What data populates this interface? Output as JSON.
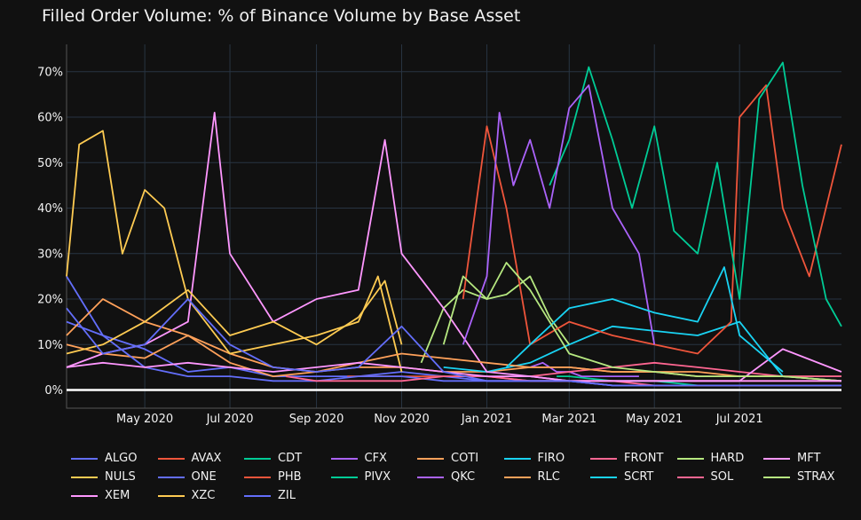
{
  "chart_data": {
    "type": "line",
    "title": "Filled Order Volume: % of Binance Volume by Base Asset",
    "xlabel": "",
    "ylabel": "",
    "x_range": [
      "2020-03-06",
      "2021-09-12"
    ],
    "ylim": [
      -4,
      76
    ],
    "y_ticks": [
      0,
      10,
      20,
      30,
      40,
      50,
      60,
      70
    ],
    "y_tick_labels": [
      "0%",
      "10%",
      "20%",
      "30%",
      "40%",
      "50%",
      "60%",
      "70%"
    ],
    "x_ticks": [
      "2020-05-01",
      "2020-07-01",
      "2020-09-01",
      "2020-11-01",
      "2021-01-01",
      "2021-03-01",
      "2021-05-01",
      "2021-07-01"
    ],
    "x_tick_labels": [
      "May 2020",
      "Jul 2020",
      "Sep 2020",
      "Nov 2020",
      "Jan 2021",
      "Mar 2021",
      "May 2021",
      "Jul 2021"
    ],
    "grid": true,
    "zero_line": true,
    "legend_position": "bottom",
    "background": "#111111",
    "series": [
      {
        "name": "ALGO",
        "color": "#636efa",
        "x": [
          "2020-03-06",
          "2020-04-01",
          "2020-05-01",
          "2020-06-01",
          "2020-07-01",
          "2020-08-01",
          "2020-09-01",
          "2020-10-01",
          "2020-11-01",
          "2020-12-01",
          "2021-01-01",
          "2021-02-01",
          "2021-03-01",
          "2021-04-01",
          "2021-05-01",
          "2021-06-01",
          "2021-07-01",
          "2021-08-01",
          "2021-09-12"
        ],
        "values": [
          25,
          12,
          9,
          4,
          5,
          3,
          3,
          3,
          4,
          3,
          2,
          2,
          2,
          1,
          1,
          1,
          1,
          1,
          1
        ]
      },
      {
        "name": "AVAX",
        "color": "#ef553b",
        "x": [
          "2020-09-23",
          "2020-10-15",
          "2020-11-15",
          "2020-12-15",
          "2021-01-01",
          "2021-02-01",
          "2021-03-01",
          "2021-04-01",
          "2021-05-01",
          "2021-06-01",
          "2021-07-01",
          "2021-08-01",
          "2021-09-12"
        ],
        "values": [
          3,
          3,
          3,
          3,
          3,
          2,
          2,
          2,
          2,
          2,
          2,
          2,
          2
        ]
      },
      {
        "name": "CDT",
        "color": "#00cc96",
        "x": [
          "2021-02-20",
          "2021-03-01",
          "2021-04-01",
          "2021-05-01",
          "2021-06-01",
          "2021-07-01",
          "2021-08-01",
          "2021-09-12"
        ],
        "values": [
          3,
          3,
          2,
          2,
          1,
          1,
          1,
          1
        ]
      },
      {
        "name": "CFX",
        "color": "#ab63fa",
        "x": [
          "2021-02-01",
          "2021-02-10",
          "2021-02-20",
          "2021-03-01",
          "2021-03-10",
          "2021-03-20",
          "2021-04-01",
          "2021-04-20"
        ],
        "values": [
          5,
          6,
          4,
          4,
          3,
          3,
          3,
          3
        ]
      },
      {
        "name": "COTI",
        "color": "#ffa15a",
        "x": [
          "2020-03-06",
          "2020-04-01",
          "2020-05-01",
          "2020-06-01",
          "2020-07-01",
          "2020-08-01",
          "2020-09-01",
          "2020-10-01",
          "2020-11-01",
          "2020-12-01",
          "2021-01-01",
          "2021-02-01",
          "2021-03-01",
          "2021-04-01",
          "2021-05-01",
          "2021-06-01",
          "2021-07-01",
          "2021-08-01",
          "2021-09-12"
        ],
        "values": [
          10,
          8,
          7,
          12,
          8,
          5,
          4,
          5,
          5,
          4,
          4,
          5,
          5,
          4,
          4,
          4,
          3,
          3,
          3
        ]
      },
      {
        "name": "FIRO",
        "color": "#19d3f3",
        "x": [
          "2020-12-01",
          "2021-01-01",
          "2021-02-01",
          "2021-03-01",
          "2021-04-01",
          "2021-05-01",
          "2021-06-01",
          "2021-07-01",
          "2021-08-01",
          "2021-09-12"
        ],
        "values": [
          5,
          4,
          6,
          10,
          14,
          13,
          12,
          15,
          3,
          2
        ]
      },
      {
        "name": "FRONT",
        "color": "#ff6692",
        "x": [
          "2021-02-01",
          "2021-03-01",
          "2021-04-01",
          "2021-05-01",
          "2021-06-01",
          "2021-07-01",
          "2021-08-01",
          "2021-09-12"
        ],
        "values": [
          3,
          4,
          5,
          6,
          5,
          4,
          3,
          3
        ]
      },
      {
        "name": "HARD",
        "color": "#b6e880",
        "x": [
          "2020-11-15",
          "2020-12-01",
          "2020-12-15",
          "2021-01-01",
          "2021-01-15",
          "2021-02-01",
          "2021-02-15",
          "2021-03-01"
        ],
        "values": [
          6,
          18,
          22,
          20,
          21,
          25,
          16,
          10
        ]
      },
      {
        "name": "MFT",
        "color": "#ff97ff",
        "x": [
          "2020-03-06",
          "2020-04-01",
          "2020-05-01",
          "2020-06-01",
          "2020-06-20",
          "2020-07-01",
          "2020-08-01",
          "2020-09-01",
          "2020-10-01",
          "2020-10-20",
          "2020-11-01",
          "2020-12-01",
          "2021-01-01",
          "2021-02-01",
          "2021-03-01",
          "2021-05-01",
          "2021-07-01",
          "2021-08-01",
          "2021-09-12"
        ],
        "values": [
          5,
          8,
          10,
          15,
          61,
          30,
          15,
          20,
          22,
          55,
          30,
          18,
          4,
          3,
          2,
          2,
          2,
          9,
          4
        ]
      },
      {
        "name": "NULS",
        "color": "#fecb52",
        "x": [
          "2020-03-06",
          "2020-03-15",
          "2020-04-01",
          "2020-04-15",
          "2020-05-01",
          "2020-05-15",
          "2020-06-01",
          "2020-07-01",
          "2020-08-01",
          "2020-09-01",
          "2020-10-01",
          "2020-10-15",
          "2020-11-01"
        ],
        "values": [
          25,
          54,
          57,
          30,
          44,
          40,
          20,
          8,
          10,
          12,
          15,
          25,
          4
        ]
      },
      {
        "name": "ONE",
        "color": "#636efa",
        "x": [
          "2020-03-06",
          "2020-04-01",
          "2020-05-01",
          "2020-06-01",
          "2020-07-01",
          "2020-08-01",
          "2020-09-01",
          "2020-10-01",
          "2020-11-01",
          "2020-12-01",
          "2021-01-01",
          "2021-02-01",
          "2021-03-01",
          "2021-04-01",
          "2021-05-01",
          "2021-06-01",
          "2021-07-01",
          "2021-08-01",
          "2021-09-12"
        ],
        "values": [
          15,
          12,
          5,
          3,
          3,
          2,
          2,
          3,
          3,
          2,
          2,
          2,
          2,
          1,
          1,
          1,
          1,
          1,
          1
        ]
      },
      {
        "name": "PHB",
        "color": "#ef553b",
        "x": [
          "2020-12-15",
          "2021-01-01",
          "2021-01-15",
          "2021-02-01",
          "2021-03-01",
          "2021-04-01",
          "2021-05-01",
          "2021-06-01",
          "2021-06-25",
          "2021-07-01",
          "2021-07-20",
          "2021-08-01",
          "2021-08-20",
          "2021-09-12"
        ],
        "values": [
          20,
          58,
          40,
          10,
          15,
          12,
          10,
          8,
          15,
          60,
          67,
          40,
          25,
          54
        ]
      },
      {
        "name": "PIVX",
        "color": "#00cc96",
        "x": [
          "2021-02-15",
          "2021-03-01",
          "2021-03-15",
          "2021-04-01",
          "2021-04-15",
          "2021-05-01",
          "2021-05-15",
          "2021-06-01",
          "2021-06-15",
          "2021-07-01",
          "2021-07-15",
          "2021-08-01",
          "2021-08-15",
          "2021-09-01",
          "2021-09-12"
        ],
        "values": [
          45,
          55,
          71,
          55,
          40,
          58,
          35,
          30,
          50,
          20,
          64,
          72,
          45,
          20,
          14
        ]
      },
      {
        "name": "QKC",
        "color": "#ab63fa",
        "x": [
          "2020-12-15",
          "2021-01-01",
          "2021-01-10",
          "2021-01-20",
          "2021-02-01",
          "2021-02-15",
          "2021-03-01",
          "2021-03-15",
          "2021-04-01",
          "2021-04-20",
          "2021-05-01"
        ],
        "values": [
          10,
          25,
          61,
          45,
          55,
          40,
          62,
          67,
          40,
          30,
          10
        ]
      },
      {
        "name": "RLC",
        "color": "#ffa15a",
        "x": [
          "2020-03-06",
          "2020-04-01",
          "2020-05-01",
          "2020-06-01",
          "2020-07-01",
          "2020-08-01",
          "2020-09-01",
          "2020-10-01",
          "2020-11-01",
          "2020-12-01",
          "2021-01-01",
          "2021-02-01",
          "2021-03-01",
          "2021-04-01",
          "2021-05-01",
          "2021-06-01",
          "2021-07-01",
          "2021-08-01",
          "2021-09-12"
        ],
        "values": [
          12,
          20,
          15,
          12,
          6,
          3,
          4,
          6,
          8,
          7,
          6,
          5,
          5,
          4,
          4,
          3,
          3,
          3,
          2
        ]
      },
      {
        "name": "SCRT",
        "color": "#19d3f3",
        "x": [
          "2021-01-15",
          "2021-02-01",
          "2021-03-01",
          "2021-04-01",
          "2021-05-01",
          "2021-06-01",
          "2021-06-20",
          "2021-07-01",
          "2021-08-01"
        ],
        "values": [
          5,
          10,
          18,
          20,
          17,
          15,
          27,
          12,
          4
        ]
      },
      {
        "name": "SOL",
        "color": "#ff6692",
        "x": [
          "2020-08-10",
          "2020-09-01",
          "2020-10-01",
          "2020-11-01",
          "2020-12-01",
          "2021-01-01",
          "2021-02-01",
          "2021-03-01",
          "2021-04-01",
          "2021-05-01",
          "2021-06-01",
          "2021-07-01",
          "2021-08-01",
          "2021-09-12"
        ],
        "values": [
          3,
          2,
          2,
          2,
          3,
          3,
          2,
          2,
          2,
          1,
          1,
          1,
          1,
          1
        ]
      },
      {
        "name": "STRAX",
        "color": "#b6e880",
        "x": [
          "2020-12-01",
          "2020-12-15",
          "2021-01-01",
          "2021-01-15",
          "2021-02-01",
          "2021-03-01",
          "2021-04-01",
          "2021-05-01",
          "2021-06-01",
          "2021-07-01",
          "2021-08-01",
          "2021-09-12"
        ],
        "values": [
          10,
          25,
          20,
          28,
          22,
          8,
          5,
          4,
          3,
          3,
          3,
          2
        ]
      },
      {
        "name": "XEM",
        "color": "#ff97ff",
        "x": [
          "2020-03-06",
          "2020-04-01",
          "2020-05-01",
          "2020-06-01",
          "2020-07-01",
          "2020-08-01",
          "2020-09-01",
          "2020-10-01",
          "2020-11-01",
          "2020-12-01",
          "2021-01-01",
          "2021-02-01",
          "2021-03-01",
          "2021-04-01",
          "2021-05-01",
          "2021-06-01",
          "2021-07-01",
          "2021-08-01",
          "2021-09-12"
        ],
        "values": [
          5,
          6,
          5,
          6,
          5,
          4,
          5,
          6,
          5,
          4,
          3,
          3,
          2,
          2,
          2,
          2,
          2,
          2,
          2
        ]
      },
      {
        "name": "XZC",
        "color": "#fecb52",
        "x": [
          "2020-03-06",
          "2020-04-01",
          "2020-05-01",
          "2020-06-01",
          "2020-07-01",
          "2020-08-01",
          "2020-09-01",
          "2020-10-01",
          "2020-10-20",
          "2020-11-01"
        ],
        "values": [
          8,
          10,
          15,
          22,
          12,
          15,
          10,
          16,
          24,
          10
        ]
      },
      {
        "name": "ZIL",
        "color": "#636efa",
        "x": [
          "2020-03-06",
          "2020-04-01",
          "2020-05-01",
          "2020-06-01",
          "2020-07-01",
          "2020-08-01",
          "2020-09-01",
          "2020-10-01",
          "2020-11-01",
          "2020-12-01",
          "2021-01-01",
          "2021-02-01",
          "2021-03-01",
          "2021-04-01",
          "2021-05-01",
          "2021-06-01",
          "2021-07-01",
          "2021-08-01",
          "2021-09-12"
        ],
        "values": [
          18,
          8,
          10,
          20,
          10,
          5,
          4,
          5,
          14,
          4,
          2,
          2,
          2,
          1,
          1,
          1,
          1,
          1,
          1
        ]
      }
    ]
  }
}
